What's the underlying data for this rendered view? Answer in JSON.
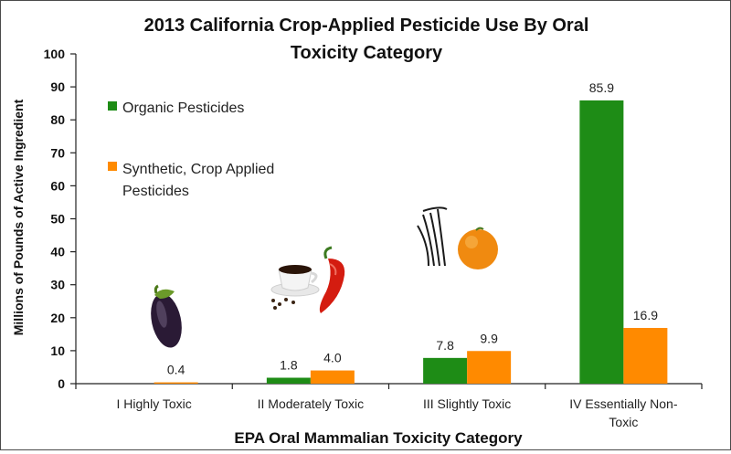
{
  "chart_data": {
    "type": "bar",
    "title_line1": "2013 California Crop-Applied Pesticide Use By Oral",
    "title_line2": "Toxicity Category",
    "xlabel": "EPA Oral Mammalian Toxicity Category",
    "ylabel": "Millions of Pounds of Active Ingredient",
    "ylim": [
      0,
      100
    ],
    "yticks": [
      0,
      10,
      20,
      30,
      40,
      50,
      60,
      70,
      80,
      90,
      100
    ],
    "grid": false,
    "legend_position": "left",
    "categories": [
      [
        "I Highly Toxic"
      ],
      [
        "II Moderately Toxic"
      ],
      [
        "III Slightly Toxic"
      ],
      [
        "IV Essentially Non-",
        "Toxic"
      ]
    ],
    "series": [
      {
        "name": "Organic Pesticides",
        "color": "#1e8c16",
        "values": [
          null,
          1.8,
          7.8,
          85.9
        ],
        "labels": [
          "",
          "1.8",
          "7.8",
          "85.9"
        ]
      },
      {
        "name_lines": [
          "Synthetic, Crop Applied",
          "Pesticides"
        ],
        "color": "#ff8a00",
        "values": [
          0.4,
          4.0,
          9.9,
          16.9
        ],
        "labels": [
          "0.4",
          "4.0",
          "9.9",
          "16.9"
        ]
      }
    ]
  },
  "illustrations": {
    "category_1": [
      "eggplant-icon"
    ],
    "category_2": [
      "coffee-cup-icon",
      "red-pepper-icon"
    ],
    "category_3": [
      "vanilla-beans-icon",
      "orange-fruit-icon"
    ]
  }
}
